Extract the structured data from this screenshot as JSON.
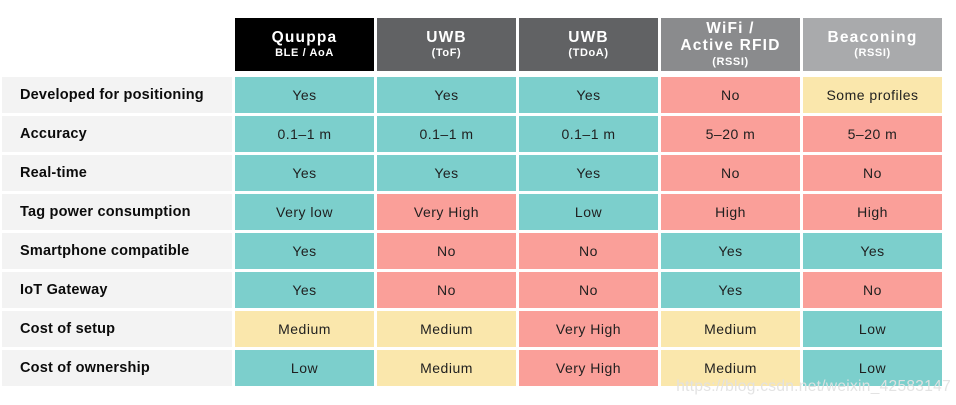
{
  "watermark": "https://blog.csdn.net/weixin_42583147",
  "palette": {
    "positive": "#7CCFCC",
    "negative": "#FA9F99",
    "neutral": "#FAE7AC",
    "label_bg": "#F3F3F3",
    "header_text": "#FFFFFF"
  },
  "chart_data": {
    "type": "table",
    "columns": [
      {
        "title": "Quuppa",
        "subtitle": "BLE / AoA",
        "bg": "#000000"
      },
      {
        "title": "UWB",
        "subtitle": "(ToF)",
        "bg": "#616264"
      },
      {
        "title": "UWB",
        "subtitle": "(TDoA)",
        "bg": "#616264"
      },
      {
        "title": "WiFi /",
        "title2": "Active RFID",
        "subtitle": "(RSSI)",
        "bg": "#8A8B8D"
      },
      {
        "title": "Beaconing",
        "subtitle": "(RSSI)",
        "bg": "#A9AAAC"
      }
    ],
    "rows": [
      {
        "label": "Developed for positioning",
        "cells": [
          {
            "text": "Yes",
            "tone": "positive"
          },
          {
            "text": "Yes",
            "tone": "positive"
          },
          {
            "text": "Yes",
            "tone": "positive"
          },
          {
            "text": "No",
            "tone": "negative"
          },
          {
            "text": "Some profiles",
            "tone": "neutral"
          }
        ]
      },
      {
        "label": "Accuracy",
        "cells": [
          {
            "text": "0.1–1 m",
            "tone": "positive"
          },
          {
            "text": "0.1–1 m",
            "tone": "positive"
          },
          {
            "text": "0.1–1 m",
            "tone": "positive"
          },
          {
            "text": "5–20 m",
            "tone": "negative"
          },
          {
            "text": "5–20 m",
            "tone": "negative"
          }
        ]
      },
      {
        "label": "Real-time",
        "cells": [
          {
            "text": "Yes",
            "tone": "positive"
          },
          {
            "text": "Yes",
            "tone": "positive"
          },
          {
            "text": "Yes",
            "tone": "positive"
          },
          {
            "text": "No",
            "tone": "negative"
          },
          {
            "text": "No",
            "tone": "negative"
          }
        ]
      },
      {
        "label": "Tag power consumption",
        "cells": [
          {
            "text": "Very low",
            "tone": "positive"
          },
          {
            "text": "Very High",
            "tone": "negative"
          },
          {
            "text": "Low",
            "tone": "positive"
          },
          {
            "text": "High",
            "tone": "negative"
          },
          {
            "text": "High",
            "tone": "negative"
          }
        ]
      },
      {
        "label": "Smartphone compatible",
        "cells": [
          {
            "text": "Yes",
            "tone": "positive"
          },
          {
            "text": "No",
            "tone": "negative"
          },
          {
            "text": "No",
            "tone": "negative"
          },
          {
            "text": "Yes",
            "tone": "positive"
          },
          {
            "text": "Yes",
            "tone": "positive"
          }
        ]
      },
      {
        "label": "IoT Gateway",
        "cells": [
          {
            "text": "Yes",
            "tone": "positive"
          },
          {
            "text": "No",
            "tone": "negative"
          },
          {
            "text": "No",
            "tone": "negative"
          },
          {
            "text": "Yes",
            "tone": "positive"
          },
          {
            "text": "No",
            "tone": "negative"
          }
        ]
      },
      {
        "label": "Cost of setup",
        "cells": [
          {
            "text": "Medium",
            "tone": "neutral"
          },
          {
            "text": "Medium",
            "tone": "neutral"
          },
          {
            "text": "Very High",
            "tone": "negative"
          },
          {
            "text": "Medium",
            "tone": "neutral"
          },
          {
            "text": "Low",
            "tone": "positive"
          }
        ]
      },
      {
        "label": "Cost of ownership",
        "cells": [
          {
            "text": "Low",
            "tone": "positive"
          },
          {
            "text": "Medium",
            "tone": "neutral"
          },
          {
            "text": "Very High",
            "tone": "negative"
          },
          {
            "text": "Medium",
            "tone": "neutral"
          },
          {
            "text": "Low",
            "tone": "positive"
          }
        ]
      }
    ]
  }
}
